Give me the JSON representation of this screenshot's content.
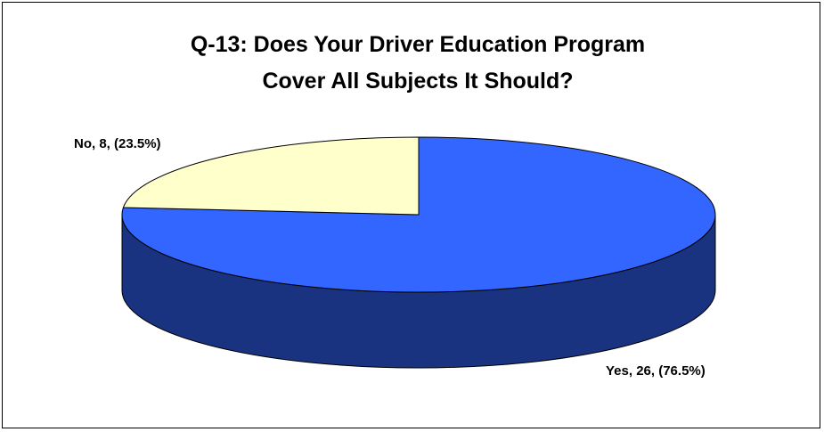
{
  "chart_data": {
    "type": "pie",
    "title_lines": [
      "Q-13: Does Your Driver Education Program",
      "Cover All Subjects It Should?"
    ],
    "slices": [
      {
        "name": "Yes",
        "value": 26,
        "percent": 76.5,
        "label": "Yes, 26, (76.5%)",
        "color": "#3366FF",
        "side_color": "#1A3380"
      },
      {
        "name": "No",
        "value": 8,
        "percent": 23.5,
        "label": "No, 8, (23.5%)",
        "color": "#FFFFCC",
        "side_color": "#808066"
      }
    ],
    "three_d": true,
    "legend": "none"
  }
}
